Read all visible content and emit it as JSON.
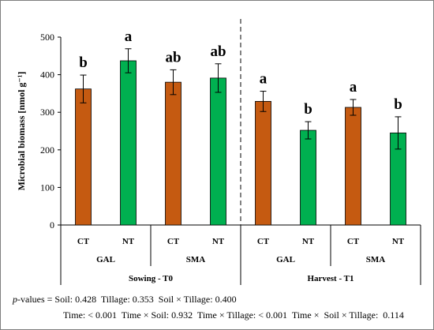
{
  "chart_data": {
    "type": "bar",
    "ylabel": "Microbial biomass [nmol g⁻¹]",
    "ylim": [
      0,
      500
    ],
    "yticks": [
      0,
      100,
      200,
      300,
      400,
      500
    ],
    "grid": false,
    "legend": "none",
    "colors": {
      "CT": "#c55a11",
      "NT": "#00b050",
      "border": "#000000",
      "divider": "#404040"
    },
    "bars": [
      {
        "tillage": "CT",
        "site": "GAL",
        "period": "Sowing - T0",
        "value": 362,
        "error": 37,
        "letter": "b"
      },
      {
        "tillage": "NT",
        "site": "GAL",
        "period": "Sowing - T0",
        "value": 437,
        "error": 32,
        "letter": "a"
      },
      {
        "tillage": "CT",
        "site": "SMA",
        "period": "Sowing - T0",
        "value": 380,
        "error": 33,
        "letter": "ab"
      },
      {
        "tillage": "NT",
        "site": "SMA",
        "period": "Sowing - T0",
        "value": 391,
        "error": 38,
        "letter": "ab"
      },
      {
        "tillage": "CT",
        "site": "GAL",
        "period": "Harvest - T1",
        "value": 329,
        "error": 27,
        "letter": "a"
      },
      {
        "tillage": "NT",
        "site": "GAL",
        "period": "Harvest - T1",
        "value": 252,
        "error": 23,
        "letter": "b"
      },
      {
        "tillage": "CT",
        "site": "SMA",
        "period": "Harvest - T1",
        "value": 313,
        "error": 21,
        "letter": "a"
      },
      {
        "tillage": "NT",
        "site": "SMA",
        "period": "Harvest - T1",
        "value": 245,
        "error": 43,
        "letter": "b"
      }
    ],
    "sites": [
      "GAL",
      "SMA",
      "GAL",
      "SMA"
    ],
    "periods": [
      "Sowing - T0",
      "Harvest - T1"
    ]
  },
  "pvalues": {
    "label": "p",
    "label_suffix": "-values =",
    "line1": "Soil: 0.428  Tillage: 0.353  Soil × Tillage: 0.400",
    "line2": "Time: < 0.001  Time × Soil: 0.932  Time × Tillage: < 0.001  Time ×  Soil × Tillage:  0.114"
  }
}
